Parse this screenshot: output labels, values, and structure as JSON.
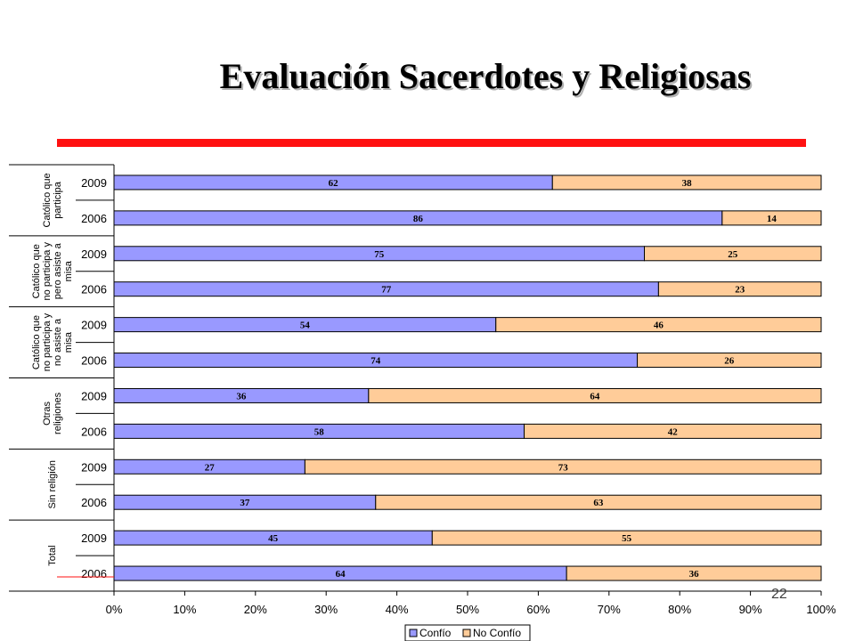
{
  "title": "Evaluación Sacerdotes y Religiosas",
  "page_number": "22",
  "colors": {
    "confio": "#9999ff",
    "no_confio": "#ffcc99",
    "accent_rule": "#ff1111"
  },
  "chart_data": {
    "type": "bar",
    "orientation": "horizontal",
    "stacked": "percent",
    "groups": [
      {
        "label": "Católico que participa",
        "label_lines": [
          "Católico que",
          "participa"
        ],
        "years": [
          "2009",
          "2006"
        ]
      },
      {
        "label": "Católico que no participa y pero asiste a misa",
        "label_lines": [
          "Católico que",
          "no participa y",
          "pero asiste a",
          "misa"
        ],
        "years": [
          "2009",
          "2006"
        ]
      },
      {
        "label": "Católico que no participa y no asiste a misa",
        "label_lines": [
          "Católico que",
          "no participa y",
          "no asiste a",
          "misa"
        ],
        "years": [
          "2009",
          "2006"
        ]
      },
      {
        "label": "Otras religiones",
        "label_lines": [
          "Otras",
          "religiones"
        ],
        "years": [
          "2009",
          "2006"
        ]
      },
      {
        "label": "Sin religión",
        "label_lines": [
          "Sin religión"
        ],
        "years": [
          "2009",
          "2006"
        ]
      },
      {
        "label": "Total",
        "label_lines": [
          "Total"
        ],
        "years": [
          "2009",
          "2006"
        ]
      }
    ],
    "series": [
      {
        "name": "Confío",
        "values": [
          62,
          86,
          75,
          77,
          54,
          74,
          36,
          58,
          27,
          37,
          45,
          64
        ]
      },
      {
        "name": "No Confío",
        "values": [
          38,
          14,
          25,
          23,
          46,
          26,
          64,
          42,
          73,
          63,
          55,
          36
        ]
      }
    ],
    "x_ticks": [
      "0%",
      "10%",
      "20%",
      "30%",
      "40%",
      "50%",
      "60%",
      "70%",
      "80%",
      "90%",
      "100%"
    ],
    "xlim": [
      0,
      100
    ],
    "grid": false,
    "legend": "bottom-center"
  }
}
